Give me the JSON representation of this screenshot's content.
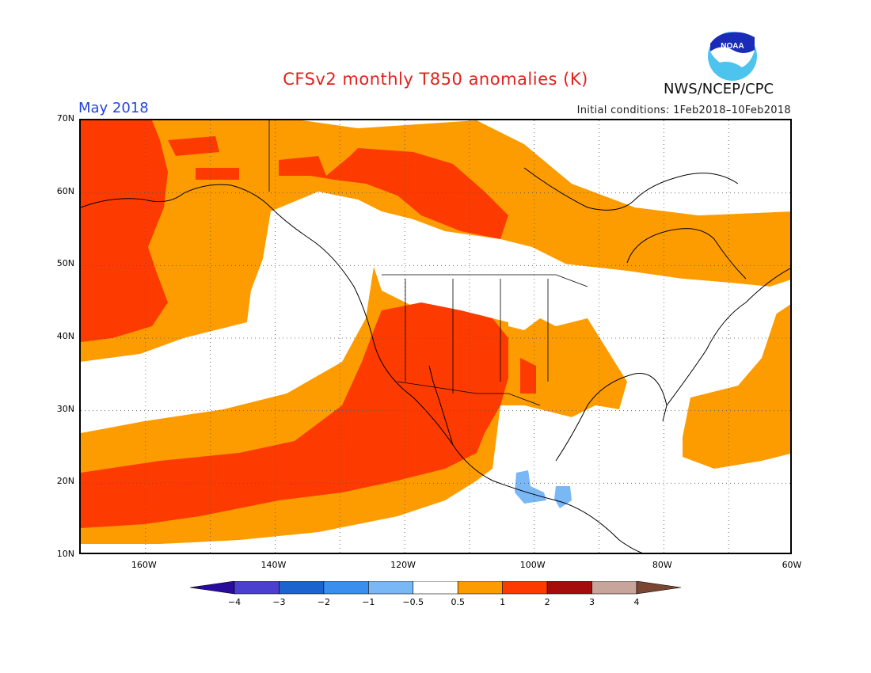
{
  "title": "CFSv2 monthly T850 anomalies (K)",
  "period": "May 2018",
  "agency": "NWS/NCEP/CPC",
  "logo_text": "NOAA",
  "initial_conditions": "Initial conditions: 1Feb2018–10Feb2018",
  "map": {
    "projection": "equirectangular",
    "extent": {
      "lon": [
        -170,
        -60
      ],
      "lat": [
        10,
        70
      ]
    },
    "gridlines": "dotted every 10° lat/lon",
    "lat_labels": [
      "70N",
      "60N",
      "50N",
      "40N",
      "30N",
      "20N",
      "10N"
    ],
    "lon_labels": [
      "160W",
      "140W",
      "120W",
      "100W",
      "80W",
      "60W"
    ],
    "summary": [
      {
        "region": "Eastern North Pacific (20N–30N)",
        "category": "1 to 2"
      },
      {
        "region": "US Southwest",
        "category": "1 to 2"
      },
      {
        "region": "Central Alaska coast / Gulf of Alaska",
        "category": "1 to 2"
      },
      {
        "region": "Central Canada",
        "category": "1 to 2"
      },
      {
        "region": "US Southern Plains / Southeast",
        "category": "0.5 to 1"
      },
      {
        "region": "Western Atlantic",
        "category": "0.5 to 1"
      },
      {
        "region": "Northern Rockies / Great Plains / Northeast US",
        "category": "-0.5 to 0.5"
      },
      {
        "region": "Southern Mexico",
        "category": "-1 to -0.5"
      }
    ]
  },
  "colorbar": {
    "labels": [
      "−4",
      "−3",
      "−2",
      "−1",
      "−0.5",
      "0.5",
      "1",
      "2",
      "3",
      "4"
    ],
    "colors": [
      "#2a0c9c",
      "#4b3fd0",
      "#1b63cf",
      "#3a8fee",
      "#7ab7f5",
      "#ffffff",
      "#fd9c00",
      "#fd3b00",
      "#a50c0c",
      "#c8a59a",
      "#7a4631"
    ]
  }
}
